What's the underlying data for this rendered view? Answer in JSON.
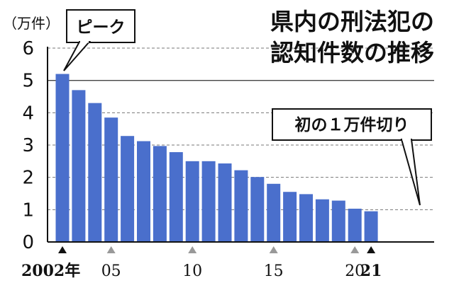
{
  "chart_data": {
    "type": "bar",
    "title_lines": [
      "県内の刑法犯の",
      "認知件数の推移"
    ],
    "unit_label": "（万件）",
    "years": [
      2002,
      2003,
      2004,
      2005,
      2006,
      2007,
      2008,
      2009,
      2010,
      2011,
      2012,
      2013,
      2014,
      2015,
      2016,
      2017,
      2018,
      2019,
      2020,
      2021
    ],
    "values": [
      5.2,
      4.7,
      4.3,
      3.85,
      3.28,
      3.12,
      2.97,
      2.78,
      2.5,
      2.5,
      2.43,
      2.22,
      2.01,
      1.8,
      1.55,
      1.48,
      1.32,
      1.28,
      1.03,
      0.95
    ],
    "ylim": [
      0,
      6
    ],
    "yticks": [
      "0",
      "1",
      "2",
      "3",
      "4",
      "5",
      "6"
    ],
    "xtick_labels": [
      {
        "year": 2002,
        "label": "2002年",
        "bold": true
      },
      {
        "year": 2005,
        "label": "05",
        "bold": false
      },
      {
        "year": 2010,
        "label": "10",
        "bold": false
      },
      {
        "year": 2015,
        "label": "15",
        "bold": false
      },
      {
        "year": 2020,
        "label": "20",
        "bold": false
      },
      {
        "year": 2021,
        "label": "21",
        "bold": true
      }
    ],
    "annotations": [
      {
        "year": 2002,
        "text": "ピーク"
      },
      {
        "year": 2021,
        "text": "初の１万件切り"
      }
    ],
    "bar_color": "#4a6fcc",
    "gridlines": true
  }
}
